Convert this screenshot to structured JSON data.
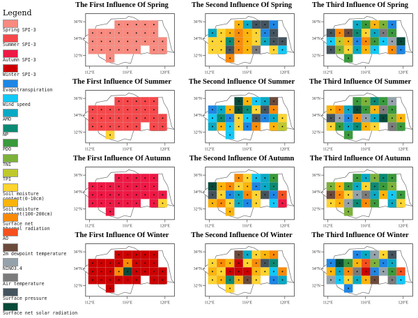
{
  "legend": {
    "title": "Legend",
    "items": [
      {
        "label": "Spring SPI-3",
        "color": "#f88a7f"
      },
      {
        "label": "Summer SPI-3",
        "color": "#f5484b"
      },
      {
        "label": "Autumn SPI-3",
        "color": "#ee1845"
      },
      {
        "label": "Winter SPI-3",
        "color": "#cc0000"
      },
      {
        "label": "Evapotranspiration",
        "color": "#1e86e4"
      },
      {
        "label": "Wind speed",
        "color": "#12c8f6"
      },
      {
        "label": "AMO",
        "color": "#0aa9c4"
      },
      {
        "label": "NP",
        "color": "#0b8a74"
      },
      {
        "label": "PDO",
        "color": "#3a9a3c"
      },
      {
        "label": "TNI",
        "color": "#7cb23a"
      },
      {
        "label": "TPI",
        "color": "#bfc82c"
      },
      {
        "label": "Soil moisture\ncontent(0-10cm)",
        "color": "#fed430"
      },
      {
        "label": "Soil moisture\ncontent(100-200cm)",
        "color": "#fbb40c"
      },
      {
        "label": "Surface net\nthermal radiation",
        "color": "#f98a06"
      },
      {
        "label": "AO",
        "color": "#f5501e"
      },
      {
        "label": "2m dewpoint temperature",
        "color": "#6b4a3c"
      },
      {
        "label": "NINO3.4",
        "color": "#94a2ab"
      },
      {
        "label": "Air temperature",
        "color": "#7b7b7b"
      },
      {
        "label": "Surface pressure",
        "color": "#44545f"
      },
      {
        "label": "Surface net solar radiation",
        "color": "#084a3a"
      }
    ]
  },
  "axes": {
    "lat_ticks": [
      "36°N",
      "34°N",
      "32°N"
    ],
    "lon_ticks": [
      "112°E",
      "116°E",
      "120°E"
    ]
  },
  "chart_data": {
    "type": "heatmap",
    "panels": [
      {
        "title": "The First Influence Of Spring",
        "grid": [
          [
            -1,
            -1,
            -1,
            0,
            0,
            0,
            0,
            0,
            -1
          ],
          [
            0,
            0,
            0,
            0,
            0,
            0,
            0,
            0,
            -1
          ],
          [
            0,
            0,
            0,
            0,
            0,
            0,
            0,
            0,
            0
          ],
          [
            0,
            0,
            0,
            0,
            0,
            0,
            -1,
            0,
            0
          ],
          [
            -1,
            -1,
            0,
            -1,
            -1,
            -1,
            -1,
            -1,
            -1
          ]
        ]
      },
      {
        "title": "The Second Influence Of Spring",
        "grid": [
          [
            -1,
            -1,
            -1,
            12,
            6,
            18,
            18,
            4,
            -1
          ],
          [
            6,
            11,
            12,
            13,
            12,
            11,
            4,
            18,
            -1
          ],
          [
            11,
            11,
            7,
            13,
            12,
            11,
            6,
            18,
            18
          ],
          [
            11,
            11,
            18,
            13,
            12,
            17,
            -1,
            11,
            5
          ],
          [
            -1,
            -1,
            13,
            -1,
            -1,
            -1,
            -1,
            -1,
            -1
          ]
        ]
      },
      {
        "title": "The Third Influence Of Spring",
        "grid": [
          [
            -1,
            -1,
            -1,
            6,
            8,
            12,
            9,
            4,
            -1
          ],
          [
            18,
            13,
            15,
            7,
            11,
            6,
            17,
            8,
            -1
          ],
          [
            5,
            10,
            12,
            4,
            13,
            8,
            5,
            16,
            19
          ],
          [
            18,
            9,
            11,
            6,
            12,
            5,
            -1,
            13,
            4
          ],
          [
            -1,
            -1,
            8,
            -1,
            -1,
            -1,
            -1,
            -1,
            -1
          ]
        ]
      },
      {
        "title": "The First Influence Of Summer",
        "grid": [
          [
            -1,
            -1,
            -1,
            1,
            1,
            1,
            1,
            1,
            -1
          ],
          [
            1,
            1,
            1,
            1,
            1,
            1,
            1,
            1,
            -1
          ],
          [
            1,
            1,
            1,
            1,
            1,
            1,
            1,
            1,
            1
          ],
          [
            1,
            1,
            1,
            1,
            1,
            1,
            -1,
            1,
            1
          ],
          [
            -1,
            -1,
            11,
            -1,
            -1,
            -1,
            -1,
            -1,
            -1
          ]
        ]
      },
      {
        "title": "The Second Influence Of Summer",
        "grid": [
          [
            -1,
            -1,
            -1,
            19,
            12,
            5,
            6,
            15,
            -1
          ],
          [
            4,
            6,
            12,
            19,
            7,
            11,
            18,
            13,
            -1
          ],
          [
            5,
            7,
            4,
            11,
            5,
            18,
            4,
            6,
            11
          ],
          [
            6,
            12,
            5,
            11,
            4,
            13,
            -1,
            12,
            10
          ],
          [
            -1,
            -1,
            5,
            -1,
            -1,
            -1,
            -1,
            -1,
            -1
          ]
        ]
      },
      {
        "title": "The Third Influence Of Summer",
        "grid": [
          [
            -1,
            -1,
            -1,
            8,
            9,
            7,
            8,
            16,
            -1
          ],
          [
            12,
            13,
            6,
            19,
            8,
            12,
            17,
            8,
            -1
          ],
          [
            18,
            16,
            4,
            13,
            16,
            6,
            19,
            9,
            12
          ],
          [
            11,
            8,
            6,
            7,
            12,
            11,
            -1,
            17,
            8
          ],
          [
            -1,
            -1,
            8,
            -1,
            -1,
            -1,
            -1,
            -1,
            -1
          ]
        ]
      },
      {
        "title": "The First Influence Of Autumn",
        "grid": [
          [
            -1,
            -1,
            -1,
            2,
            2,
            2,
            2,
            2,
            -1
          ],
          [
            2,
            2,
            2,
            2,
            2,
            2,
            2,
            2,
            -1
          ],
          [
            2,
            2,
            2,
            2,
            2,
            2,
            2,
            2,
            2
          ],
          [
            2,
            2,
            2,
            2,
            2,
            2,
            -1,
            2,
            11
          ],
          [
            -1,
            -1,
            2,
            -1,
            -1,
            -1,
            -1,
            -1,
            -1
          ]
        ]
      },
      {
        "title": "The Second Influence Of Autumn",
        "grid": [
          [
            -1,
            -1,
            -1,
            13,
            11,
            5,
            6,
            8,
            -1
          ],
          [
            19,
            12,
            13,
            11,
            12,
            4,
            6,
            7,
            -1
          ],
          [
            18,
            11,
            4,
            6,
            13,
            11,
            18,
            4,
            14
          ],
          [
            12,
            13,
            11,
            6,
            4,
            11,
            -1,
            5,
            2
          ],
          [
            -1,
            -1,
            12,
            -1,
            -1,
            -1,
            -1,
            -1,
            -1
          ]
        ]
      },
      {
        "title": "The Third Influence Of Autumn",
        "grid": [
          [
            -1,
            -1,
            -1,
            8,
            6,
            9,
            7,
            8,
            -1
          ],
          [
            9,
            12,
            8,
            6,
            11,
            7,
            8,
            9,
            -1
          ],
          [
            15,
            13,
            11,
            16,
            17,
            6,
            12,
            5,
            8
          ],
          [
            11,
            12,
            16,
            7,
            13,
            8,
            -1,
            6,
            11
          ],
          [
            -1,
            -1,
            9,
            -1,
            -1,
            -1,
            -1,
            -1,
            -1
          ]
        ]
      },
      {
        "title": "The First Influence Of Winter",
        "grid": [
          [
            -1,
            -1,
            -1,
            3,
            3,
            3,
            3,
            3,
            -1
          ],
          [
            3,
            3,
            3,
            3,
            13,
            3,
            3,
            3,
            -1
          ],
          [
            3,
            3,
            3,
            13,
            19,
            3,
            3,
            3,
            3
          ],
          [
            3,
            3,
            3,
            3,
            3,
            3,
            -1,
            3,
            3
          ],
          [
            -1,
            -1,
            3,
            -1,
            -1,
            -1,
            -1,
            -1,
            -1
          ]
        ]
      },
      {
        "title": "The Second Influence Of Winter",
        "grid": [
          [
            -1,
            -1,
            -1,
            15,
            6,
            11,
            12,
            13,
            -1
          ],
          [
            11,
            13,
            12,
            3,
            11,
            13,
            18,
            7,
            -1
          ],
          [
            12,
            11,
            3,
            3,
            3,
            12,
            11,
            5,
            13
          ],
          [
            11,
            12,
            7,
            12,
            15,
            11,
            -1,
            4,
            6
          ],
          [
            -1,
            -1,
            11,
            -1,
            -1,
            -1,
            -1,
            -1,
            -1
          ]
        ]
      },
      {
        "title": "The Third Influence Of Winter",
        "grid": [
          [
            -1,
            -1,
            -1,
            4,
            6,
            16,
            11,
            18,
            -1
          ],
          [
            4,
            19,
            8,
            12,
            14,
            9,
            4,
            6,
            -1
          ],
          [
            12,
            6,
            13,
            17,
            3,
            4,
            16,
            8,
            14
          ],
          [
            16,
            5,
            11,
            6,
            12,
            15,
            -1,
            17,
            5
          ],
          [
            -1,
            -1,
            4,
            -1,
            -1,
            -1,
            -1,
            -1,
            -1
          ]
        ]
      }
    ]
  }
}
